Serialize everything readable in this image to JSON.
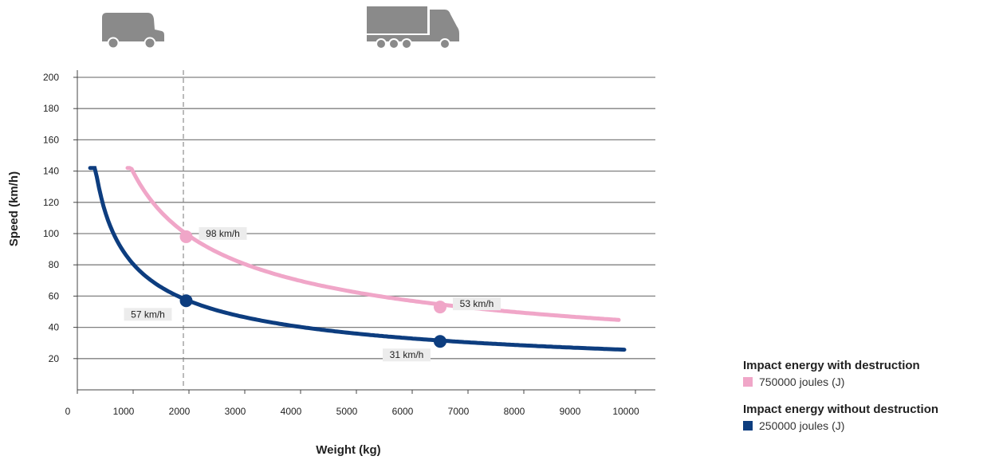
{
  "chart_data": {
    "type": "line",
    "xlabel": "Weight (kg)",
    "ylabel": "Speed (km/h)",
    "xlim": [
      0,
      10500
    ],
    "ylim": [
      0,
      210
    ],
    "x_ticks": [
      0,
      1000,
      2000,
      3000,
      4000,
      5000,
      6000,
      7000,
      8000,
      9000,
      10000
    ],
    "y_ticks": [
      20,
      40,
      60,
      80,
      100,
      120,
      140,
      160,
      180,
      200
    ],
    "grid": "horizontal",
    "reference_line_x": 1900,
    "series": [
      {
        "name": "750000 joules (J)",
        "energy_joules": 750000,
        "color": "#f0a6c8",
        "x_range": [
          900,
          9700
        ],
        "highlight_points": [
          {
            "x": 1950,
            "y": 98,
            "label": "98 km/h"
          },
          {
            "x": 6500,
            "y": 53,
            "label": "53 km/h"
          }
        ]
      },
      {
        "name": "250000 joules (J)",
        "energy_joules": 250000,
        "color": "#0d3d7f",
        "x_range": [
          230,
          9800
        ],
        "highlight_points": [
          {
            "x": 1950,
            "y": 57,
            "label": "57 km/h"
          },
          {
            "x": 6500,
            "y": 31,
            "label": "31 km/h"
          }
        ]
      }
    ],
    "icons": [
      "car-icon",
      "truck-icon"
    ]
  },
  "legend": {
    "groups": [
      {
        "title": "Impact energy with destruction",
        "entry": "750000 joules (J)",
        "color": "#f0a6c8"
      },
      {
        "title": "Impact energy without destruction",
        "entry": "250000 joules (J)",
        "color": "#0d3d7f"
      }
    ]
  }
}
